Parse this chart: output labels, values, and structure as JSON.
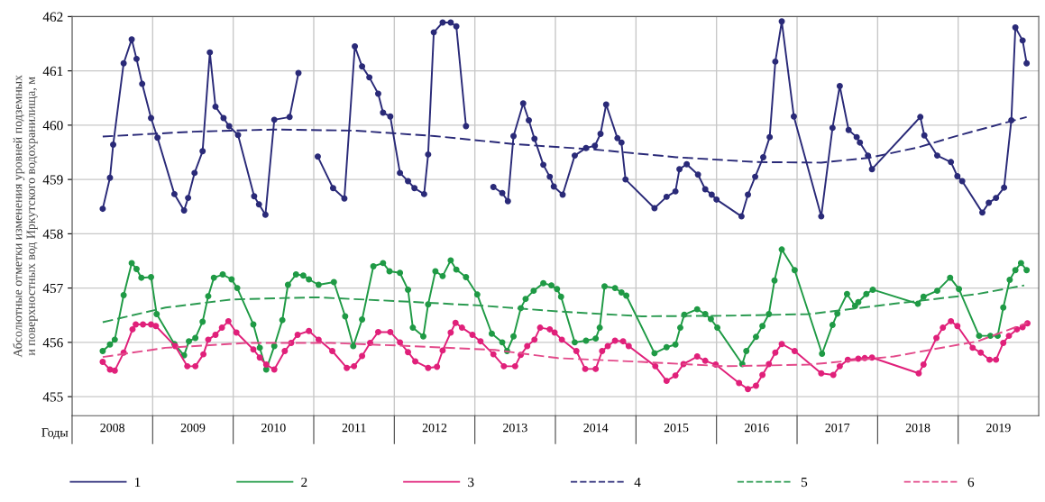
{
  "chart_data": {
    "type": "line",
    "ylabel": "Абсолютные отметки изменения уровней подземных\nи поверхностных вод Иркутского водохранилища, м",
    "xlabel": "Годы",
    "xlim": [
      2008,
      2020
    ],
    "ylim": [
      454.65,
      462
    ],
    "yticks": [
      455,
      456,
      457,
      458,
      459,
      460,
      461,
      462
    ],
    "xticks": [
      {
        "value": 2008,
        "label": null
      },
      {
        "value": 2008.5,
        "label": "2008"
      },
      {
        "value": 2009,
        "label": null
      },
      {
        "value": 2009.5,
        "label": "2009"
      },
      {
        "value": 2010,
        "label": null
      },
      {
        "value": 2010.5,
        "label": "2010"
      },
      {
        "value": 2011,
        "label": null
      },
      {
        "value": 2011.5,
        "label": "2011"
      },
      {
        "value": 2012,
        "label": null
      },
      {
        "value": 2012.5,
        "label": "2012"
      },
      {
        "value": 2013,
        "label": null
      },
      {
        "value": 2013.5,
        "label": "2013"
      },
      {
        "value": 2014,
        "label": null
      },
      {
        "value": 2014.5,
        "label": "2014"
      },
      {
        "value": 2015,
        "label": null
      },
      {
        "value": 2015.5,
        "label": "2015"
      },
      {
        "value": 2016,
        "label": null
      },
      {
        "value": 2016.5,
        "label": "2016"
      },
      {
        "value": 2017,
        "label": null
      },
      {
        "value": 2017.5,
        "label": "2017"
      },
      {
        "value": 2018,
        "label": null
      },
      {
        "value": 2018.5,
        "label": "2018"
      },
      {
        "value": 2019,
        "label": null
      },
      {
        "value": 2019.5,
        "label": "2019"
      }
    ],
    "grid": true,
    "legend": "bottom",
    "series": [
      {
        "name": "1",
        "color": "#2a2a78",
        "marker": "circle",
        "line_style": "solid",
        "x": [
          2008.38,
          2008.47,
          2008.51,
          2008.64,
          2008.74,
          2008.8,
          2008.87,
          2008.98,
          2009.06,
          2009.27,
          2009.39,
          2009.44,
          2009.52,
          2009.62,
          2009.71,
          2009.78,
          2009.88,
          2009.95,
          2010.06,
          2010.26,
          2010.32,
          2010.4,
          2010.51,
          2010.7,
          2010.81,
          2010.93,
          2011.05,
          2011.24,
          2011.38,
          2011.51,
          2011.6,
          2011.69,
          2011.8,
          2011.86,
          2011.95,
          2012.07,
          2012.17,
          2012.25,
          2012.37,
          2012.42,
          2012.49,
          2012.6,
          2012.7,
          2012.77,
          2012.89,
          2013.06,
          2013.23,
          2013.34,
          2013.41,
          2013.48,
          2013.6,
          2013.67,
          2013.74,
          2013.85,
          2013.93,
          2013.98,
          2014.09,
          2014.24,
          2014.38,
          2014.49,
          2014.56,
          2014.63,
          2014.77,
          2014.82,
          2014.87,
          2015.23,
          2015.38,
          2015.49,
          2015.54,
          2015.63,
          2015.77,
          2015.86,
          2015.94,
          2016.0,
          2016.31,
          2016.39,
          2016.48,
          2016.58,
          2016.66,
          2016.73,
          2016.81,
          2016.96,
          2017.3,
          2017.44,
          2017.53,
          2017.64,
          2017.74,
          2017.78,
          2017.88,
          2017.93,
          2018.53,
          2018.58,
          2018.74,
          2018.91,
          2018.99,
          2019.05,
          2019.3,
          2019.38,
          2019.47,
          2019.57,
          2019.66,
          2019.71,
          2019.8,
          2019.85
        ],
        "values": [
          458.46,
          459.03,
          459.64,
          461.14,
          461.58,
          461.22,
          460.76,
          460.13,
          459.77,
          458.73,
          458.43,
          458.66,
          459.12,
          459.52,
          461.34,
          460.34,
          460.13,
          459.98,
          459.82,
          458.69,
          458.54,
          458.35,
          460.1,
          460.15,
          460.96,
          null,
          459.42,
          458.84,
          458.65,
          461.45,
          461.08,
          460.88,
          460.58,
          460.23,
          460.16,
          459.12,
          458.97,
          458.84,
          458.73,
          459.46,
          461.71,
          461.89,
          461.89,
          461.82,
          459.98,
          null,
          458.86,
          458.75,
          458.6,
          459.8,
          460.4,
          460.09,
          459.75,
          459.27,
          459.05,
          458.87,
          458.72,
          459.44,
          459.58,
          459.62,
          459.84,
          460.38,
          459.76,
          459.68,
          459.0,
          458.47,
          458.68,
          458.78,
          459.19,
          459.28,
          459.09,
          458.82,
          458.72,
          458.63,
          458.32,
          458.72,
          459.05,
          459.41,
          459.78,
          461.17,
          461.91,
          460.16,
          458.32,
          459.95,
          460.72,
          459.91,
          459.78,
          459.68,
          459.44,
          459.19,
          460.15,
          459.81,
          459.44,
          459.32,
          459.06,
          458.97,
          458.39,
          458.57,
          458.66,
          458.85,
          460.09,
          461.8,
          461.56,
          461.14
        ]
      },
      {
        "name": "2",
        "color": "#1f9a45",
        "marker": "circle",
        "line_style": "solid",
        "x": [
          2008.38,
          2008.47,
          2008.53,
          2008.64,
          2008.74,
          2008.8,
          2008.86,
          2008.98,
          2009.05,
          2009.27,
          2009.39,
          2009.45,
          2009.53,
          2009.62,
          2009.69,
          2009.76,
          2009.87,
          2009.98,
          2010.05,
          2010.25,
          2010.33,
          2010.41,
          2010.51,
          2010.61,
          2010.68,
          2010.78,
          2010.87,
          2010.94,
          2011.06,
          2011.25,
          2011.39,
          2011.49,
          2011.6,
          2011.74,
          2011.86,
          2011.94,
          2012.07,
          2012.17,
          2012.23,
          2012.36,
          2012.42,
          2012.51,
          2012.6,
          2012.7,
          2012.77,
          2012.89,
          2013.03,
          2013.21,
          2013.34,
          2013.4,
          2013.48,
          2013.57,
          2013.63,
          2013.73,
          2013.85,
          2013.95,
          2014.02,
          2014.07,
          2014.24,
          2014.38,
          2014.5,
          2014.55,
          2014.61,
          2014.74,
          2014.82,
          2014.88,
          2015.23,
          2015.38,
          2015.49,
          2015.55,
          2015.6,
          2015.76,
          2015.86,
          2015.93,
          2016.01,
          2016.32,
          2016.37,
          2016.49,
          2016.57,
          2016.65,
          2016.72,
          2016.81,
          2016.97,
          2017.31,
          2017.44,
          2017.5,
          2017.62,
          2017.72,
          2017.76,
          2017.86,
          2017.94,
          2018.5,
          2018.57,
          2018.74,
          2018.9,
          2019.01,
          2019.26,
          2019.4,
          2019.49,
          2019.56,
          2019.64,
          2019.71,
          2019.78,
          2019.85
        ],
        "values": [
          455.84,
          455.96,
          456.05,
          456.87,
          457.46,
          457.35,
          457.19,
          457.2,
          456.52,
          455.97,
          455.76,
          456.02,
          456.08,
          456.38,
          456.85,
          457.19,
          457.25,
          457.16,
          457.0,
          456.33,
          455.9,
          455.5,
          455.93,
          456.41,
          457.06,
          457.25,
          457.23,
          457.16,
          457.06,
          457.11,
          456.48,
          455.93,
          456.42,
          457.4,
          457.46,
          457.31,
          457.28,
          456.97,
          456.27,
          456.11,
          456.7,
          457.31,
          457.22,
          457.51,
          457.34,
          457.2,
          456.88,
          456.16,
          456.0,
          455.84,
          456.11,
          456.63,
          456.8,
          456.95,
          457.09,
          457.05,
          456.98,
          456.84,
          456.0,
          456.03,
          456.07,
          456.27,
          457.03,
          457.0,
          456.92,
          456.86,
          455.8,
          455.91,
          455.96,
          456.27,
          456.51,
          456.61,
          456.52,
          456.43,
          456.27,
          455.6,
          455.84,
          456.1,
          456.3,
          456.52,
          457.14,
          457.71,
          457.33,
          455.79,
          456.32,
          456.53,
          456.89,
          456.67,
          456.74,
          456.89,
          456.97,
          456.71,
          456.84,
          456.95,
          457.19,
          456.98,
          456.12,
          456.12,
          456.12,
          456.64,
          457.15,
          457.33,
          457.46,
          457.33
        ]
      },
      {
        "name": "3",
        "color": "#e0207a",
        "marker": "circle",
        "line_style": "solid",
        "x": [
          2008.38,
          2008.47,
          2008.53,
          2008.64,
          2008.75,
          2008.79,
          2008.88,
          2008.98,
          2009.04,
          2009.28,
          2009.43,
          2009.53,
          2009.63,
          2009.69,
          2009.78,
          2009.86,
          2009.94,
          2010.04,
          2010.25,
          2010.33,
          2010.41,
          2010.51,
          2010.64,
          2010.72,
          2010.8,
          2010.94,
          2011.06,
          2011.23,
          2011.41,
          2011.5,
          2011.6,
          2011.7,
          2011.8,
          2011.95,
          2012.07,
          2012.17,
          2012.26,
          2012.42,
          2012.53,
          2012.6,
          2012.7,
          2012.76,
          2012.84,
          2012.97,
          2013.07,
          2013.23,
          2013.36,
          2013.5,
          2013.57,
          2013.65,
          2013.74,
          2013.81,
          2013.93,
          2013.99,
          2014.08,
          2014.26,
          2014.37,
          2014.5,
          2014.58,
          2014.65,
          2014.74,
          2014.84,
          2014.91,
          2015.24,
          2015.38,
          2015.49,
          2015.59,
          2015.76,
          2015.86,
          2015.99,
          2016.28,
          2016.39,
          2016.49,
          2016.57,
          2016.65,
          2016.73,
          2016.81,
          2016.97,
          2017.3,
          2017.45,
          2017.53,
          2017.63,
          2017.76,
          2017.84,
          2017.93,
          2018.51,
          2018.57,
          2018.73,
          2018.81,
          2018.91,
          2018.99,
          2019.18,
          2019.28,
          2019.39,
          2019.47,
          2019.56,
          2019.63,
          2019.73,
          2019.8,
          2019.86
        ],
        "values": [
          455.64,
          455.5,
          455.48,
          455.81,
          456.24,
          456.33,
          456.33,
          456.33,
          456.3,
          455.93,
          455.56,
          455.56,
          455.78,
          456.05,
          456.14,
          456.27,
          456.39,
          456.18,
          455.87,
          455.72,
          455.59,
          455.5,
          455.84,
          455.99,
          456.14,
          456.21,
          456.05,
          455.84,
          455.53,
          455.56,
          455.75,
          455.99,
          456.19,
          456.19,
          456.0,
          455.82,
          455.65,
          455.53,
          455.55,
          455.85,
          456.18,
          456.36,
          456.27,
          456.14,
          456.02,
          455.78,
          455.56,
          455.56,
          455.77,
          455.93,
          456.05,
          456.27,
          456.24,
          456.18,
          456.05,
          455.84,
          455.51,
          455.51,
          455.84,
          455.93,
          456.03,
          456.02,
          455.93,
          455.56,
          455.29,
          455.39,
          455.6,
          455.74,
          455.66,
          455.59,
          455.25,
          455.14,
          455.2,
          455.4,
          455.6,
          455.81,
          455.97,
          455.84,
          455.43,
          455.4,
          455.56,
          455.68,
          455.7,
          455.71,
          455.72,
          455.43,
          455.59,
          456.08,
          456.27,
          456.39,
          456.3,
          455.9,
          455.81,
          455.68,
          455.68,
          455.99,
          456.12,
          456.24,
          456.28,
          456.35
        ]
      },
      {
        "name": "4",
        "color": "#2a2a78",
        "marker": "none",
        "line_style": "dashed",
        "x": [
          2008.38,
          2009.5,
          2010.5,
          2011.5,
          2012.5,
          2013.5,
          2014.5,
          2015.5,
          2016.5,
          2017.3,
          2017.9,
          2018.5,
          2019.0,
          2019.85
        ],
        "values": [
          459.79,
          459.88,
          459.92,
          459.9,
          459.8,
          459.65,
          459.55,
          459.41,
          459.32,
          459.31,
          459.4,
          459.59,
          459.81,
          460.15
        ]
      },
      {
        "name": "5",
        "color": "#2a9a50",
        "marker": "none",
        "line_style": "dashed",
        "x": [
          2008.38,
          2009.16,
          2009.98,
          2011.02,
          2012.03,
          2013.05,
          2014.03,
          2015.07,
          2016.11,
          2017.15,
          2018.2,
          2019.24,
          2019.82
        ],
        "values": [
          456.37,
          456.64,
          456.79,
          456.83,
          456.76,
          456.68,
          456.57,
          456.48,
          456.49,
          456.52,
          456.71,
          456.89,
          457.05
        ]
      },
      {
        "name": "6",
        "color": "#e34a8a",
        "marker": "none",
        "line_style": "dashed",
        "x": [
          2008.38,
          2009.16,
          2010.18,
          2011.21,
          2012.23,
          2013.25,
          2014.03,
          2015.07,
          2016.11,
          2017.15,
          2018.2,
          2019.24,
          2019.86
        ],
        "values": [
          455.73,
          455.9,
          455.99,
          455.99,
          455.93,
          455.86,
          455.71,
          455.64,
          455.56,
          455.59,
          455.74,
          456.02,
          456.36
        ]
      }
    ]
  }
}
